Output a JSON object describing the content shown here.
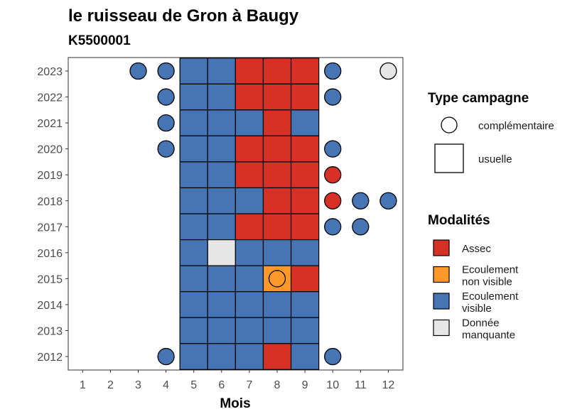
{
  "chart_data": {
    "type": "heatmap",
    "title": "le ruisseau de Gron à Baugy",
    "subtitle": "K5500001",
    "xlabel": "Mois",
    "ylabel": "",
    "x_ticks": [
      "1",
      "2",
      "3",
      "4",
      "5",
      "6",
      "7",
      "8",
      "9",
      "10",
      "11",
      "12"
    ],
    "y_ticks": [
      "2023",
      "2022",
      "2021",
      "2020",
      "2019",
      "2018",
      "2017",
      "2016",
      "2015",
      "2014",
      "2013",
      "2012"
    ],
    "colors": {
      "Assec": "#d73027",
      "Ecoulement non visible": "#fe9929",
      "Ecoulement visible": "#4575b4",
      "Donnée manquante": "#e6e6e6"
    },
    "usuelle": [
      {
        "year": 2023,
        "values": {
          "5": "Ecoulement visible",
          "6": "Ecoulement visible",
          "7": "Assec",
          "8": "Assec",
          "9": "Assec"
        }
      },
      {
        "year": 2022,
        "values": {
          "5": "Ecoulement visible",
          "6": "Ecoulement visible",
          "7": "Assec",
          "8": "Assec",
          "9": "Assec"
        }
      },
      {
        "year": 2021,
        "values": {
          "5": "Ecoulement visible",
          "6": "Ecoulement visible",
          "7": "Ecoulement visible",
          "8": "Assec",
          "9": "Ecoulement visible"
        }
      },
      {
        "year": 2020,
        "values": {
          "5": "Ecoulement visible",
          "6": "Ecoulement visible",
          "7": "Assec",
          "8": "Assec",
          "9": "Assec"
        }
      },
      {
        "year": 2019,
        "values": {
          "5": "Ecoulement visible",
          "6": "Ecoulement visible",
          "7": "Assec",
          "8": "Assec",
          "9": "Assec"
        }
      },
      {
        "year": 2018,
        "values": {
          "5": "Ecoulement visible",
          "6": "Ecoulement visible",
          "7": "Ecoulement visible",
          "8": "Assec",
          "9": "Assec"
        }
      },
      {
        "year": 2017,
        "values": {
          "5": "Ecoulement visible",
          "6": "Ecoulement visible",
          "7": "Assec",
          "8": "Assec",
          "9": "Assec"
        }
      },
      {
        "year": 2016,
        "values": {
          "5": "Ecoulement visible",
          "6": "Donnée manquante",
          "7": "Ecoulement visible",
          "8": "Ecoulement visible",
          "9": "Ecoulement visible"
        }
      },
      {
        "year": 2015,
        "values": {
          "5": "Ecoulement visible",
          "6": "Ecoulement visible",
          "7": "Ecoulement visible",
          "8": "Ecoulement non visible",
          "9": "Assec"
        }
      },
      {
        "year": 2014,
        "values": {
          "5": "Ecoulement visible",
          "6": "Ecoulement visible",
          "7": "Ecoulement visible",
          "8": "Ecoulement visible",
          "9": "Ecoulement visible"
        }
      },
      {
        "year": 2013,
        "values": {
          "5": "Ecoulement visible",
          "6": "Ecoulement visible",
          "7": "Ecoulement visible",
          "8": "Ecoulement visible",
          "9": "Ecoulement visible"
        }
      },
      {
        "year": 2012,
        "values": {
          "5": "Ecoulement visible",
          "6": "Ecoulement visible",
          "7": "Ecoulement visible",
          "8": "Assec",
          "9": "Ecoulement visible"
        }
      }
    ],
    "complementaire": [
      {
        "year": 2023,
        "month": 3,
        "value": "Ecoulement visible"
      },
      {
        "year": 2023,
        "month": 4,
        "value": "Ecoulement visible"
      },
      {
        "year": 2023,
        "month": 10,
        "value": "Ecoulement visible"
      },
      {
        "year": 2023,
        "month": 12,
        "value": "Donnée manquante"
      },
      {
        "year": 2022,
        "month": 4,
        "value": "Ecoulement visible"
      },
      {
        "year": 2022,
        "month": 10,
        "value": "Ecoulement visible"
      },
      {
        "year": 2021,
        "month": 4,
        "value": "Ecoulement visible"
      },
      {
        "year": 2020,
        "month": 4,
        "value": "Ecoulement visible"
      },
      {
        "year": 2020,
        "month": 10,
        "value": "Ecoulement visible"
      },
      {
        "year": 2019,
        "month": 10,
        "value": "Assec"
      },
      {
        "year": 2018,
        "month": 10,
        "value": "Assec"
      },
      {
        "year": 2018,
        "month": 11,
        "value": "Ecoulement visible"
      },
      {
        "year": 2018,
        "month": 12,
        "value": "Ecoulement visible"
      },
      {
        "year": 2017,
        "month": 10,
        "value": "Ecoulement visible"
      },
      {
        "year": 2017,
        "month": 11,
        "value": "Ecoulement visible"
      },
      {
        "year": 2015,
        "month": 8,
        "value": "Ecoulement non visible"
      },
      {
        "year": 2012,
        "month": 4,
        "value": "Ecoulement visible"
      },
      {
        "year": 2012,
        "month": 10,
        "value": "Ecoulement visible"
      }
    ],
    "legend": {
      "type_title": "Type campagne",
      "type_items": [
        "complémentaire",
        "usuelle"
      ],
      "modalites_title": "Modalités",
      "modalites_items": [
        {
          "key": "Assec",
          "lines": [
            "Assec"
          ]
        },
        {
          "key": "Ecoulement non visible",
          "lines": [
            "Ecoulement",
            "non visible"
          ]
        },
        {
          "key": "Ecoulement visible",
          "lines": [
            "Ecoulement",
            "visible"
          ]
        },
        {
          "key": "Donnée manquante",
          "lines": [
            "Donnée",
            "manquante"
          ]
        }
      ]
    }
  }
}
